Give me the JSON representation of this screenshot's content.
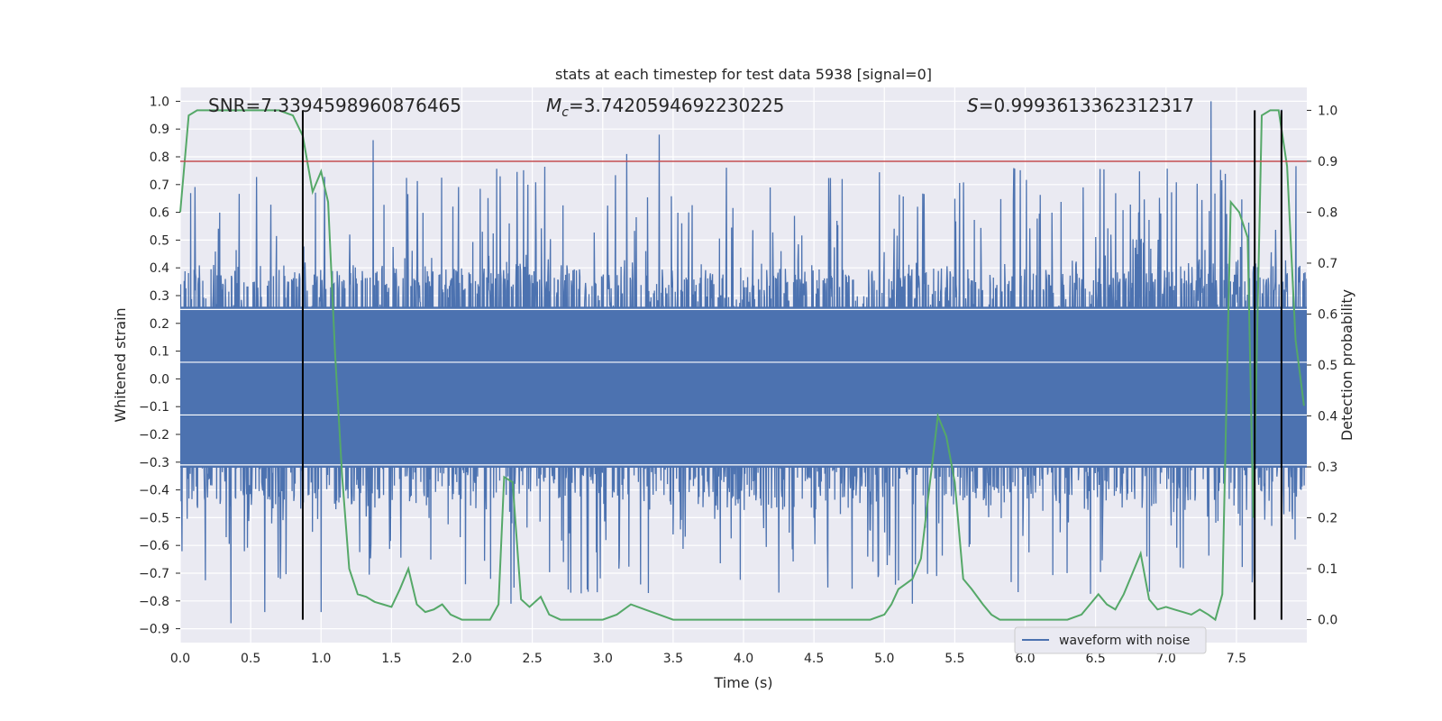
{
  "chart_data": {
    "type": "line",
    "title": "stats at each timestep for test data 5938 [signal=0]",
    "xlabel": "Time (s)",
    "ylabel": "Whitened strain",
    "ylabel_right": "Detection probability",
    "xlim": [
      0.0,
      8.0
    ],
    "ylim": [
      -0.95,
      1.05
    ],
    "ylim_right": [
      -0.045,
      1.045
    ],
    "x_ticks": [
      0.0,
      0.5,
      1.0,
      1.5,
      2.0,
      2.5,
      3.0,
      3.5,
      4.0,
      4.5,
      5.0,
      5.5,
      6.0,
      6.5,
      7.0,
      7.5
    ],
    "x_tick_labels": [
      "0.0",
      "0.5",
      "1.0",
      "1.5",
      "2.0",
      "2.5",
      "3.0",
      "3.5",
      "4.0",
      "4.5",
      "5.0",
      "5.5",
      "6.0",
      "6.5",
      "7.0",
      "7.5"
    ],
    "y_ticks": [
      1.0,
      0.9,
      0.8,
      0.7,
      0.6,
      0.5,
      0.4,
      0.3,
      0.2,
      0.1,
      0.0,
      -0.1,
      -0.2,
      -0.3,
      -0.4,
      -0.5,
      -0.6,
      -0.7,
      -0.8,
      -0.9
    ],
    "y_tick_labels": [
      "1.0",
      "0.9",
      "0.8",
      "0.7",
      "0.6",
      "0.5",
      "0.4",
      "0.3",
      "0.2",
      "0.1",
      "0.0",
      "−0.1",
      "−0.2",
      "−0.3",
      "−0.4",
      "−0.5",
      "−0.6",
      "−0.7",
      "−0.8",
      "−0.9"
    ],
    "y_ticks_right": [
      1.0,
      0.9,
      0.8,
      0.7,
      0.6,
      0.5,
      0.4,
      0.3,
      0.2,
      0.1,
      0.0
    ],
    "y_tick_labels_right": [
      "1.0",
      "0.9",
      "0.8",
      "0.7",
      "0.6",
      "0.5",
      "0.4",
      "0.3",
      "0.2",
      "0.1",
      "0.0"
    ],
    "grid": true,
    "legend_position": "lower-right",
    "series": [
      {
        "name": "waveform with noise",
        "color": "#4c72b0",
        "axis": "left",
        "kind": "noise",
        "envelope_hi": 0.45,
        "envelope_lo": -0.5,
        "core": 0.28,
        "sample_rate": 2048,
        "peaks": [
          {
            "x": 0.36,
            "y": -0.88
          },
          {
            "x": 1.37,
            "y": 0.86
          },
          {
            "x": 3.4,
            "y": 0.88
          },
          {
            "x": 3.17,
            "y": 0.81
          },
          {
            "x": 7.32,
            "y": 1.0
          },
          {
            "x": 7.82,
            "y": 0.97
          },
          {
            "x": 0.6,
            "y": -0.84
          },
          {
            "x": 1.0,
            "y": -0.84
          },
          {
            "x": 4.25,
            "y": -0.77
          },
          {
            "x": 2.35,
            "y": -0.81
          },
          {
            "x": 5.2,
            "y": -0.81
          }
        ]
      },
      {
        "name": "",
        "color": "#55a868",
        "axis": "right",
        "kind": "line",
        "x": [
          0.0,
          0.06,
          0.12,
          0.2,
          0.3,
          0.4,
          0.5,
          0.6,
          0.7,
          0.8,
          0.87,
          0.94,
          1.0,
          1.05,
          1.1,
          1.15,
          1.2,
          1.26,
          1.32,
          1.38,
          1.44,
          1.5,
          1.56,
          1.62,
          1.68,
          1.74,
          1.8,
          1.86,
          1.92,
          2.0,
          2.1,
          2.2,
          2.26,
          2.3,
          2.36,
          2.42,
          2.48,
          2.52,
          2.56,
          2.62,
          2.7,
          2.8,
          2.9,
          3.0,
          3.1,
          3.2,
          3.3,
          3.4,
          3.5,
          3.7,
          3.9,
          4.1,
          4.3,
          4.5,
          4.7,
          4.9,
          5.0,
          5.05,
          5.1,
          5.15,
          5.2,
          5.26,
          5.32,
          5.38,
          5.44,
          5.5,
          5.56,
          5.62,
          5.7,
          5.76,
          5.82,
          5.9,
          6.0,
          6.1,
          6.2,
          6.3,
          6.4,
          6.46,
          6.52,
          6.58,
          6.64,
          6.7,
          6.76,
          6.82,
          6.88,
          6.94,
          7.0,
          7.06,
          7.12,
          7.18,
          7.24,
          7.3,
          7.35,
          7.4,
          7.46,
          7.52,
          7.58,
          7.62,
          7.68,
          7.74,
          7.8,
          7.86,
          7.92,
          7.98
        ],
        "y": [
          0.8,
          0.99,
          1.0,
          1.0,
          1.0,
          1.0,
          1.0,
          1.0,
          1.0,
          0.99,
          0.95,
          0.84,
          0.88,
          0.82,
          0.52,
          0.28,
          0.1,
          0.05,
          0.045,
          0.035,
          0.03,
          0.025,
          0.06,
          0.1,
          0.03,
          0.015,
          0.02,
          0.03,
          0.01,
          0.0,
          0.0,
          0.0,
          0.03,
          0.28,
          0.27,
          0.04,
          0.025,
          0.035,
          0.045,
          0.01,
          0.0,
          0.0,
          0.0,
          0.0,
          0.01,
          0.03,
          0.02,
          0.01,
          0.0,
          0.0,
          0.0,
          0.0,
          0.0,
          0.0,
          0.0,
          0.0,
          0.01,
          0.03,
          0.06,
          0.07,
          0.08,
          0.12,
          0.26,
          0.4,
          0.36,
          0.27,
          0.08,
          0.06,
          0.03,
          0.01,
          0.0,
          0.0,
          0.0,
          0.0,
          0.0,
          0.0,
          0.01,
          0.03,
          0.05,
          0.03,
          0.02,
          0.05,
          0.09,
          0.13,
          0.04,
          0.02,
          0.025,
          0.02,
          0.015,
          0.01,
          0.02,
          0.01,
          0.0,
          0.05,
          0.82,
          0.8,
          0.75,
          0.2,
          0.99,
          1.0,
          1.0,
          0.89,
          0.55,
          0.42
        ]
      }
    ],
    "vlines": [
      {
        "x": 0.87,
        "color": "#000000"
      },
      {
        "x": 7.63,
        "color": "#000000"
      },
      {
        "x": 7.82,
        "color": "#000000"
      }
    ],
    "hline": {
      "y_right": 0.9,
      "color": "#c44e52"
    },
    "annotations": {
      "snr": "SNR=7.3394598960876465",
      "mc_symbol": "M",
      "mc_sub": "c",
      "mc_value": "=3.7420594692230225",
      "s_symbol": "S",
      "s_value": "=0.9993613362312317"
    },
    "colors": {
      "background": "#eaeaf2",
      "grid": "#ffffff",
      "waveform": "#4c72b0",
      "probability": "#55a868",
      "threshold": "#c44e52",
      "marker": "#000000"
    }
  }
}
